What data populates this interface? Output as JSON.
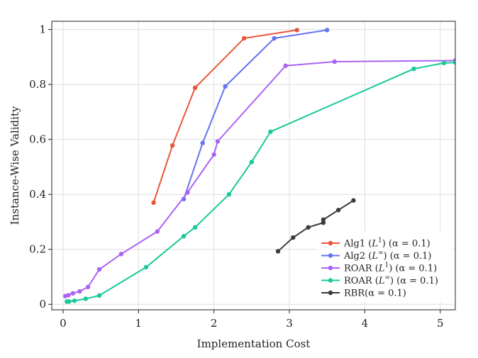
{
  "chart_data": {
    "type": "line",
    "title": "",
    "xlabel": "Implementation Cost",
    "ylabel": "Instance-Wise Validity",
    "xlim": [
      -0.15,
      5.2
    ],
    "ylim": [
      -0.02,
      1.03
    ],
    "xticks": [
      0,
      1,
      2,
      3,
      4,
      5
    ],
    "yticks": [
      0,
      0.2,
      0.4,
      0.6,
      0.8,
      1
    ],
    "ytick_labels": [
      "0",
      "0.2",
      "0.4",
      "0.6",
      "0.8",
      "1"
    ],
    "grid": true,
    "legend_position": "bottom-right",
    "series": [
      {
        "name": "Alg1",
        "legend": {
          "base": "Alg1 (",
          "norm": "L",
          "sup": "1",
          "rest": ") (α = 0.1)"
        },
        "color": "#e8563a",
        "x": [
          1.2,
          1.45,
          1.75,
          2.4,
          3.1
        ],
        "y": [
          0.37,
          0.578,
          0.788,
          0.968,
          0.998
        ]
      },
      {
        "name": "Alg2",
        "legend": {
          "base": "Alg2 (",
          "norm": "L",
          "sup": "∞",
          "rest": ") (α = 0.1)"
        },
        "color": "#6574f0",
        "x": [
          1.6,
          1.85,
          2.15,
          2.8,
          3.5
        ],
        "y": [
          0.383,
          0.587,
          0.793,
          0.968,
          0.998
        ]
      },
      {
        "name": "ROAR L1",
        "legend": {
          "base": "ROAR (",
          "norm": "L",
          "sup": "1",
          "rest": ") (α = 0.1)"
        },
        "color": "#ab63f5",
        "x": [
          0.03,
          0.07,
          0.13,
          0.22,
          0.33,
          0.48,
          0.77,
          1.25,
          1.65,
          2.0,
          2.05,
          2.95,
          3.6,
          5.2
        ],
        "y": [
          0.03,
          0.033,
          0.04,
          0.047,
          0.063,
          0.127,
          0.183,
          0.265,
          0.407,
          0.545,
          0.593,
          0.868,
          0.883,
          0.887
        ]
      },
      {
        "name": "ROAR Linf",
        "legend": {
          "base": "ROAR (",
          "norm": "L",
          "sup": "∞",
          "rest": ") (α = 0.1)"
        },
        "color": "#18c999",
        "x": [
          0.05,
          0.08,
          0.15,
          0.3,
          0.48,
          1.1,
          1.6,
          1.75,
          2.2,
          2.5,
          2.75,
          4.65,
          5.05,
          5.2
        ],
        "y": [
          0.01,
          0.01,
          0.013,
          0.02,
          0.032,
          0.135,
          0.248,
          0.28,
          0.4,
          0.518,
          0.628,
          0.857,
          0.878,
          0.88
        ]
      },
      {
        "name": "RBR",
        "legend": {
          "base": "RBR(α = 0.1)",
          "norm": "",
          "sup": "",
          "rest": ""
        },
        "color": "#3b3b3b",
        "x": [
          2.85,
          3.05,
          3.25,
          3.45,
          3.45,
          3.65,
          3.85
        ],
        "y": [
          0.193,
          0.243,
          0.28,
          0.297,
          0.308,
          0.343,
          0.378
        ]
      }
    ]
  }
}
